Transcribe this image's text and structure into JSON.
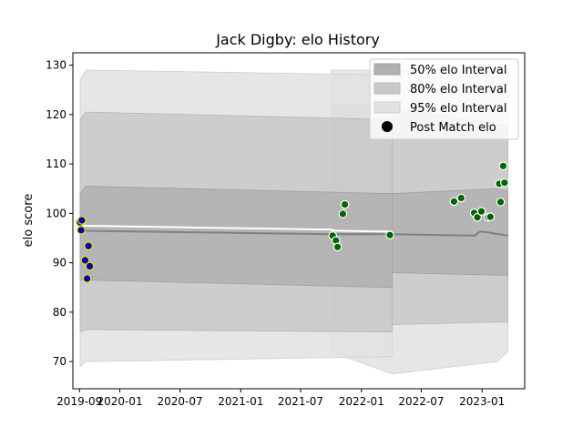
{
  "chart_data": {
    "type": "line",
    "title": "Jack Digby: elo History",
    "xlabel": "",
    "ylabel": "elo score",
    "x_axis": {
      "type": "date",
      "range": [
        "2019-08-12",
        "2023-05-10"
      ],
      "ticks": [
        "2019-09",
        "2020-01",
        "2020-07",
        "2021-01",
        "2021-07",
        "2022-01",
        "2022-07",
        "2023-01"
      ]
    },
    "y_axis": {
      "range": [
        64.5,
        132.5
      ],
      "ticks": [
        70,
        80,
        90,
        100,
        110,
        120,
        130
      ]
    },
    "grid": false,
    "legend_position": "top-right",
    "legend": [
      {
        "label": "50% elo Interval",
        "color": "#b0b0b0"
      },
      {
        "label": "80% elo Interval",
        "color": "#c8c8c8"
      },
      {
        "label": "95% elo Interval",
        "color": "#e2e2e2"
      },
      {
        "label": "Post Match elo",
        "color": "#000000"
      }
    ],
    "intervals": {
      "dates": [
        "2019-09-03",
        "2019-09-20",
        "2022-04-04"
      ],
      "i95": {
        "upper": [
          127,
          129,
          128
        ],
        "lower": [
          69,
          70,
          71
        ]
      },
      "i80": {
        "upper": [
          119,
          120.5,
          119
        ],
        "lower": [
          76,
          76.5,
          76
        ]
      },
      "i50": {
        "upper": [
          104,
          105.5,
          104
        ],
        "lower": [
          86.5,
          86.5,
          85
        ]
      }
    },
    "late_intervals": {
      "dates": [
        "2021-10-01",
        "2022-04-04",
        "2023-02-15",
        "2023-03-20"
      ],
      "i95": {
        "upper": [
          129,
          129,
          129,
          129
        ],
        "lower": [
          72,
          67.5,
          70,
          72
        ]
      },
      "i80": {
        "upper": [
          122,
          121.5,
          118,
          118
        ],
        "lower": [
          78.5,
          77.5,
          78,
          78
        ]
      },
      "i50": {
        "upper": [
          103.5,
          104,
          105,
          104.5
        ],
        "lower": [
          88,
          88,
          87.5,
          87.5
        ]
      }
    },
    "mean_line": {
      "x": [
        "2019-09-03",
        "2021-10-01",
        "2022-04-04",
        "2022-12-10",
        "2022-12-25",
        "2023-01-15",
        "2023-03-20"
      ],
      "y": [
        96.5,
        95.8,
        95.8,
        95.5,
        96.3,
        96.2,
        95.5
      ]
    },
    "white_line": {
      "x": [
        "2019-09-03",
        "2021-10-01",
        "2021-10-15",
        "2022-04-04"
      ],
      "y": [
        97.5,
        96.7,
        96.5,
        96.3
      ]
    },
    "series": [
      {
        "name": "Post Match elo",
        "color": "#0000b0",
        "edge": "#e8e000",
        "x": [
          "2019-09-03",
          "2019-09-06",
          "2019-09-08",
          "2019-09-18",
          "2019-09-24",
          "2019-09-28",
          "2019-10-02"
        ],
        "y": [
          98.2,
          96.6,
          98.6,
          90.5,
          86.8,
          93.4,
          89.3
        ]
      },
      {
        "name": "Post Match elo",
        "color": "#006400",
        "edge": "#ffffff",
        "x": [
          "2021-10-06",
          "2021-10-16",
          "2021-10-21",
          "2021-11-06",
          "2021-11-12",
          "2022-03-28",
          "2022-10-08",
          "2022-10-30",
          "2022-12-08",
          "2022-12-18",
          "2022-12-30",
          "2023-01-20",
          "2023-01-26",
          "2023-02-22",
          "2023-02-26",
          "2023-03-06",
          "2023-03-10"
        ],
        "y": [
          95.5,
          94.5,
          93.2,
          99.9,
          101.8,
          95.6,
          102.4,
          103.1,
          100.1,
          99.2,
          100.4,
          99.2,
          99.3,
          106,
          102.3,
          109.6,
          106.2
        ]
      }
    ]
  }
}
